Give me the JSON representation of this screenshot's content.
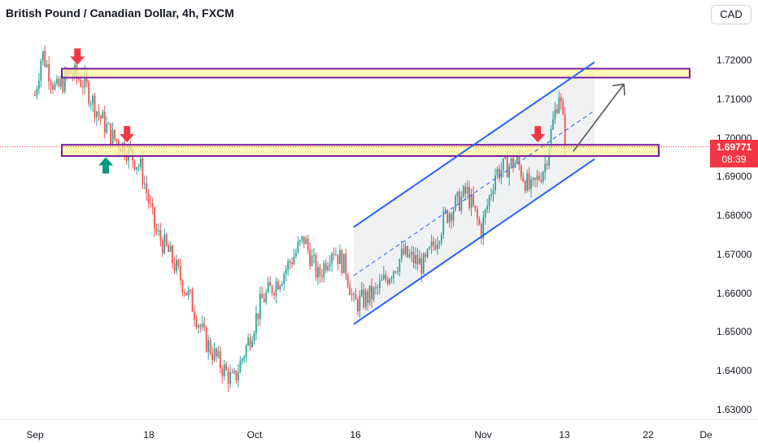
{
  "title": "British Pound / Canadian Dollar, 4h, FXCM",
  "currency_button": "CAD",
  "last_price": "1.69771",
  "countdown": "08:39",
  "colors": {
    "up": "#26a69a",
    "down": "#ef5350",
    "channel": "#2962ff",
    "zone_fill": "#fff59d",
    "zone_border": "#7b1fa2",
    "price_badge": "#f23645"
  },
  "chart_data": {
    "type": "candlestick",
    "symbol": "GBPCAD",
    "timeframe": "4h",
    "y_ticks": [
      "1.72000",
      "1.71000",
      "1.70000",
      "1.69000",
      "1.68000",
      "1.67000",
      "1.66000",
      "1.65000",
      "1.64000",
      "1.63000"
    ],
    "x_ticks": [
      "Sep",
      "18",
      "Oct",
      "16",
      "Nov",
      "13",
      "22",
      "De"
    ],
    "ylim": [
      1.628,
      1.7245
    ],
    "close_path": [
      {
        "date": "Sep 1",
        "close": 1.711
      },
      {
        "date": "Sep 2",
        "close": 1.722
      },
      {
        "date": "Sep 4",
        "close": 1.712
      },
      {
        "date": "Sep 6",
        "close": 1.717
      },
      {
        "date": "Sep 8",
        "close": 1.714
      },
      {
        "date": "Sep 10",
        "close": 1.706
      },
      {
        "date": "Sep 12",
        "close": 1.7
      },
      {
        "date": "Sep 14",
        "close": 1.697
      },
      {
        "date": "Sep 16",
        "close": 1.692
      },
      {
        "date": "Sep 18",
        "close": 1.676
      },
      {
        "date": "Sep 20",
        "close": 1.67
      },
      {
        "date": "Sep 23",
        "close": 1.658
      },
      {
        "date": "Sep 25",
        "close": 1.648
      },
      {
        "date": "Sep 27",
        "close": 1.642
      },
      {
        "date": "Sep 29",
        "close": 1.637
      },
      {
        "date": "Oct 1",
        "close": 1.647
      },
      {
        "date": "Oct 3",
        "close": 1.658
      },
      {
        "date": "Oct 6",
        "close": 1.665
      },
      {
        "date": "Oct 9",
        "close": 1.674
      },
      {
        "date": "Oct 11",
        "close": 1.664
      },
      {
        "date": "Oct 13",
        "close": 1.672
      },
      {
        "date": "Oct 15",
        "close": 1.666
      },
      {
        "date": "Oct 16",
        "close": 1.657
      },
      {
        "date": "Oct 19",
        "close": 1.66
      },
      {
        "date": "Oct 23",
        "close": 1.67
      },
      {
        "date": "Oct 26",
        "close": 1.667
      },
      {
        "date": "Oct 29",
        "close": 1.68
      },
      {
        "date": "Nov 1",
        "close": 1.686
      },
      {
        "date": "Nov 3",
        "close": 1.676
      },
      {
        "date": "Nov 5",
        "close": 1.691
      },
      {
        "date": "Nov 8",
        "close": 1.694
      },
      {
        "date": "Nov 10",
        "close": 1.686
      },
      {
        "date": "Nov 12",
        "close": 1.693
      },
      {
        "date": "Nov 14",
        "close": 1.712
      },
      {
        "date": "Nov 15",
        "close": 1.697
      }
    ],
    "horizontal_zones": [
      {
        "from": 1.7155,
        "to": 1.7178
      },
      {
        "from": 1.6953,
        "to": 1.6982
      }
    ],
    "channel": {
      "upper": [
        {
          "date": "Oct 16",
          "price": 1.677
        },
        {
          "date": "Nov 19",
          "price": 1.7195
        }
      ],
      "lower": [
        {
          "date": "Oct 16",
          "price": 1.652
        },
        {
          "date": "Nov 19",
          "price": 1.6945
        }
      ]
    },
    "projection_arrow": {
      "from": {
        "date": "Nov 16",
        "price": 1.6965
      },
      "to": {
        "date": "Nov 22",
        "price": 1.7155
      }
    },
    "signals": [
      {
        "type": "down-arrow",
        "date": "Sep 7",
        "price": 1.718
      },
      {
        "type": "up-arrow",
        "date": "Sep 11",
        "price": 1.695
      },
      {
        "type": "down-arrow",
        "date": "Sep 14",
        "price": 1.698
      },
      {
        "type": "down-arrow",
        "date": "Nov 11",
        "price": 1.698
      }
    ]
  }
}
